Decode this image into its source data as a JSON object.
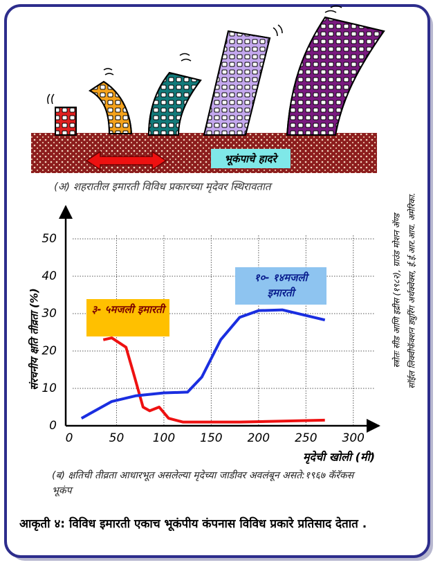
{
  "illustration": {
    "label": "भूकंपाचे हादरे",
    "caption": "(अ) शहरातील इमारती विविध प्रकारच्या मृदेवर स्थिरावतात"
  },
  "chart_data": {
    "type": "line",
    "x_label": "मृदेची खोली (मी)",
    "y_label": "संरचनीय क्षति तीव्रता (%)",
    "xlim": [
      0,
      325
    ],
    "xticks": [
      0,
      50,
      100,
      150,
      200,
      250,
      300
    ],
    "ylim": [
      0,
      55
    ],
    "yticks": [
      0,
      10,
      20,
      30,
      40,
      50
    ],
    "grid": true,
    "series": [
      {
        "name": "३- ५मजली इमारती",
        "color": "#ee1111",
        "label_color": "#ffc000",
        "x": [
          36,
          45,
          60,
          68,
          78,
          85,
          95,
          105,
          120,
          180,
          270
        ],
        "values": [
          23,
          23.5,
          21,
          14,
          5,
          4,
          5,
          2,
          1,
          1,
          1.5
        ]
      },
      {
        "name": "१०- १४मजली इमारती",
        "color": "#1a2ee0",
        "label_color": "#8ec4f0",
        "x": [
          13,
          45,
          70,
          100,
          125,
          140,
          160,
          180,
          200,
          225,
          270
        ],
        "values": [
          2,
          6.5,
          8,
          8.8,
          9,
          13,
          23,
          29,
          30.8,
          31,
          28.3
        ]
      }
    ],
    "caption": "(ब) क्षतिची तीव्रता आधारभूत असलेल्या मृदेच्या जाडीवर अवलंबून असते:१९६७ कॅरॅकस भूकंप",
    "source": [
      "स्त्रोतः सीड आणि इद्रीस (१९८२), ग्राउंड मोशन ॲण्ड",
      "सॉईल लिक्वीफॅक्शन ड्युरिंग अर्थक्वेक्स, ई.ई.आर.आय. अमेरिका."
    ]
  },
  "figure_caption": "आकृती ४: विविध इमारती एकाच भूकंपीय कंपनास विविध प्रकारे प्रतिसाद देतात ."
}
